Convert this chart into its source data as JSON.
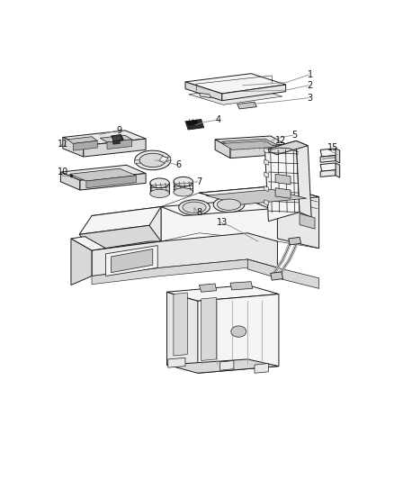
{
  "background_color": "#ffffff",
  "line_color": "#1a1a1a",
  "label_color": "#1a1a1a",
  "figsize": [
    4.38,
    5.33
  ],
  "dpi": 100,
  "lw": 0.7,
  "face_light": "#f5f5f5",
  "face_mid": "#e8e8e8",
  "face_dark": "#d8d8d8",
  "face_darker": "#c8c8c8"
}
